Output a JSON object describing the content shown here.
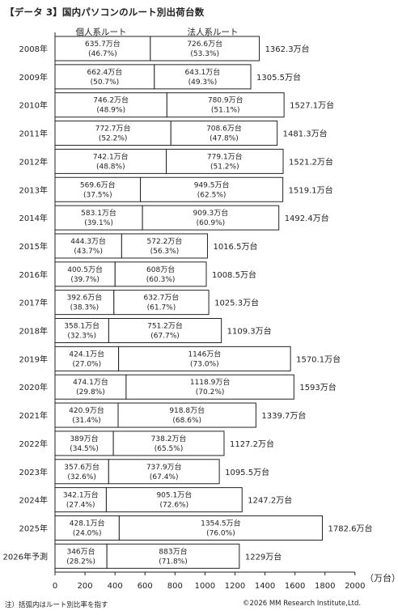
{
  "title": "【データ 3】国内パソコンのルート別出荷台数",
  "legend": {
    "personal": "個人系ルート",
    "corporate": "法人系ルート"
  },
  "unit_label": "（万台）",
  "footnote": "注）括弧内はルート別比率を指す",
  "copyright": "©2026 MM Research Institute,Ltd.",
  "chart_data": {
    "type": "bar",
    "orientation": "horizontal",
    "stacked": true,
    "categories": [
      "2008年",
      "2009年",
      "2010年",
      "2011年",
      "2012年",
      "2013年",
      "2014年",
      "2015年",
      "2016年",
      "2017年",
      "2018年",
      "2019年",
      "2020年",
      "2021年",
      "2022年",
      "2023年",
      "2024年",
      "2025年",
      "2026年予測"
    ],
    "series": [
      {
        "name": "個人系ルート",
        "values": [
          635.7,
          662.4,
          746.2,
          772.7,
          742.1,
          569.6,
          583.1,
          444.3,
          400.5,
          392.6,
          358.1,
          424.1,
          474.1,
          420.9,
          389,
          357.6,
          342.1,
          428.1,
          346
        ],
        "value_labels": [
          "635.7万台",
          "662.4万台",
          "746.2万台",
          "772.7万台",
          "742.1万台",
          "569.6万台",
          "583.1万台",
          "444.3万台",
          "400.5万台",
          "392.6万台",
          "358.1万台",
          "424.1万台",
          "474.1万台",
          "420.9万台",
          "389万台",
          "357.6万台",
          "342.1万台",
          "428.1万台",
          "346万台"
        ],
        "share_labels": [
          "(46.7%)",
          "(50.7%)",
          "(48.9%)",
          "(52.2%)",
          "(48.8%)",
          "(37.5%)",
          "(39.1%)",
          "(43.7%)",
          "(39.7%)",
          "(38.3%)",
          "(32.3%)",
          "(27.0%)",
          "(29.8%)",
          "(31.4%)",
          "(34.5%)",
          "(32.6%)",
          "(27.4%)",
          "(24.0%)",
          "(28.2%)"
        ]
      },
      {
        "name": "法人系ルート",
        "values": [
          726.6,
          643.1,
          780.9,
          708.6,
          779.1,
          949.5,
          909.3,
          572.2,
          608,
          632.7,
          751.2,
          1146,
          1118.9,
          918.8,
          738.2,
          737.9,
          905.1,
          1354.5,
          883
        ],
        "value_labels": [
          "726.6万台",
          "643.1万台",
          "780.9万台",
          "708.6万台",
          "779.1万台",
          "949.5万台",
          "909.3万台",
          "572.2万台",
          "608万台",
          "632.7万台",
          "751.2万台",
          "1146万台",
          "1118.9万台",
          "918.8万台",
          "738.2万台",
          "737.9万台",
          "905.1万台",
          "1354.5万台",
          "883万台"
        ],
        "share_labels": [
          "(53.3%)",
          "(49.3%)",
          "(51.1%)",
          "(47.8%)",
          "(51.2%)",
          "(62.5%)",
          "(60.9%)",
          "(56.3%)",
          "(60.3%)",
          "(61.7%)",
          "(67.7%)",
          "(73.0%)",
          "(70.2%)",
          "(68.6%)",
          "(65.5%)",
          "(67.4%)",
          "(72.6%)",
          "(76.0%)",
          "(71.8%)"
        ]
      }
    ],
    "totals": [
      1362.3,
      1305.5,
      1527.1,
      1481.3,
      1521.2,
      1519.1,
      1492.4,
      1016.5,
      1008.5,
      1025.3,
      1109.3,
      1570.1,
      1593,
      1339.7,
      1127.2,
      1095.5,
      1247.2,
      1782.6,
      1229
    ],
    "total_labels": [
      "1362.3万台",
      "1305.5万台",
      "1527.1万台",
      "1481.3万台",
      "1521.2万台",
      "1519.1万台",
      "1492.4万台",
      "1016.5万台",
      "1008.5万台",
      "1025.3万台",
      "1109.3万台",
      "1570.1万台",
      "1593万台",
      "1339.7万台",
      "1127.2万台",
      "1095.5万台",
      "1247.2万台",
      "1782.6万台",
      "1229万台"
    ],
    "x_ticks": [
      0,
      200,
      400,
      600,
      800,
      1000,
      1200,
      1400,
      1600,
      1800,
      2000
    ],
    "xlim": [
      0,
      2000
    ],
    "grid": false
  }
}
